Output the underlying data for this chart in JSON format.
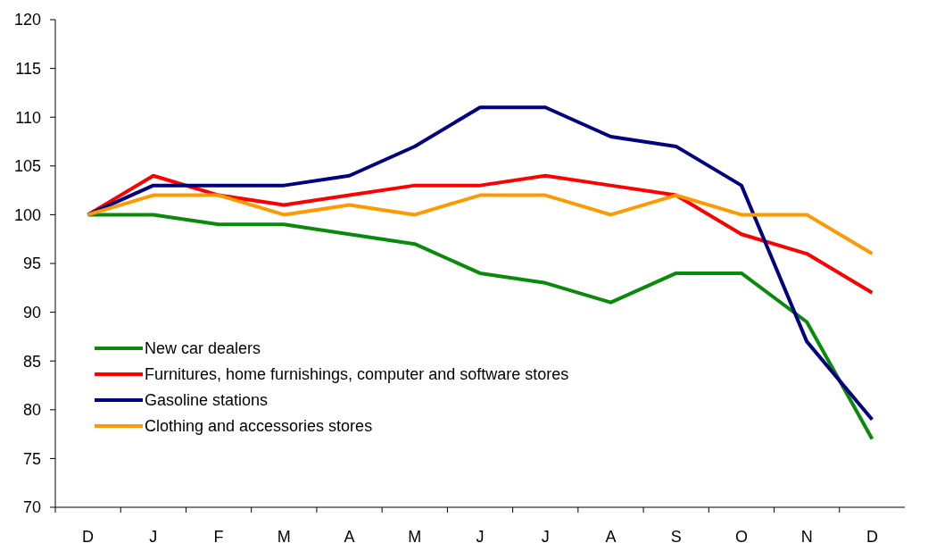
{
  "chart_data": {
    "type": "line",
    "categories": [
      "D",
      "J",
      "F",
      "M",
      "A",
      "M",
      "J",
      "J",
      "A",
      "S",
      "O",
      "N",
      "D"
    ],
    "ylim": [
      70,
      120
    ],
    "yticks": [
      70,
      75,
      80,
      85,
      90,
      95,
      100,
      105,
      110,
      115,
      120
    ],
    "grid": false,
    "legend": "bottom left",
    "line_style": "solid",
    "marker": "none",
    "series": [
      {
        "name": "New car dealers",
        "color": "#0a8a0a",
        "values": [
          100,
          100,
          99,
          99,
          98,
          97,
          94,
          93,
          91,
          94,
          94,
          89,
          77
        ]
      },
      {
        "name": "Furnitures, home furnishings, computer and software stores",
        "color": "#ff0000",
        "values": [
          100,
          104,
          102,
          101,
          102,
          103,
          103,
          104,
          103,
          102,
          98,
          96,
          92
        ]
      },
      {
        "name": "Gasoline stations",
        "color": "#000080",
        "values": [
          100,
          103,
          103,
          103,
          104,
          107,
          111,
          111,
          108,
          107,
          103,
          87,
          79
        ]
      },
      {
        "name": "Clothing and accessories stores",
        "color": "#ff9900",
        "values": [
          100,
          102,
          102,
          100,
          101,
          100,
          102,
          102,
          100,
          102,
          100,
          100,
          96
        ]
      }
    ]
  }
}
